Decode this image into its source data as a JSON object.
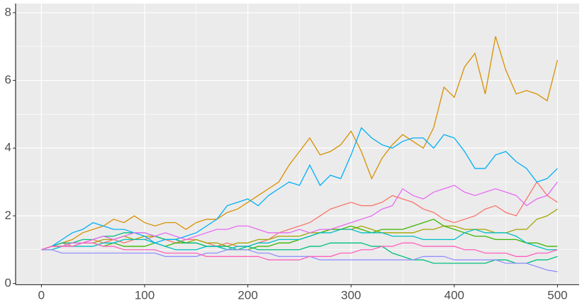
{
  "chart_data": {
    "type": "line",
    "x": [
      0,
      10,
      20,
      30,
      40,
      50,
      60,
      70,
      80,
      90,
      100,
      110,
      120,
      130,
      140,
      150,
      160,
      170,
      180,
      190,
      200,
      210,
      220,
      230,
      240,
      250,
      260,
      270,
      280,
      290,
      300,
      310,
      320,
      330,
      340,
      350,
      360,
      370,
      380,
      390,
      400,
      410,
      420,
      430,
      440,
      450,
      460,
      470,
      480,
      490,
      500
    ],
    "series": [
      {
        "color": "#F8766D",
        "values": [
          1.0,
          1.1,
          1.2,
          1.1,
          1.2,
          1.3,
          1.2,
          1.3,
          1.2,
          1.3,
          1.3,
          1.4,
          1.3,
          1.2,
          1.3,
          1.3,
          1.2,
          1.1,
          1.2,
          1.1,
          1.1,
          1.2,
          1.3,
          1.5,
          1.6,
          1.7,
          1.8,
          2.0,
          2.2,
          2.3,
          2.4,
          2.3,
          2.3,
          2.4,
          2.6,
          2.5,
          2.4,
          2.2,
          2.1,
          1.9,
          1.8,
          1.9,
          2.0,
          2.2,
          2.3,
          2.1,
          2.0,
          2.5,
          3.0,
          2.6,
          2.4
        ]
      },
      {
        "color": "#D89000",
        "values": [
          1.0,
          1.1,
          1.2,
          1.3,
          1.5,
          1.6,
          1.7,
          1.9,
          1.8,
          2.0,
          1.8,
          1.7,
          1.8,
          1.8,
          1.6,
          1.8,
          1.9,
          1.9,
          2.1,
          2.2,
          2.4,
          2.6,
          2.8,
          3.0,
          3.5,
          3.9,
          4.3,
          3.8,
          3.9,
          4.1,
          4.5,
          3.9,
          3.1,
          3.7,
          4.1,
          4.4,
          4.2,
          4.0,
          4.6,
          5.8,
          5.5,
          6.4,
          6.8,
          5.6,
          7.3,
          6.3,
          5.6,
          5.7,
          5.6,
          5.4,
          6.6
        ]
      },
      {
        "color": "#A3A500",
        "values": [
          1.0,
          1.1,
          1.1,
          1.2,
          1.2,
          1.2,
          1.3,
          1.3,
          1.4,
          1.3,
          1.4,
          1.4,
          1.3,
          1.3,
          1.2,
          1.3,
          1.2,
          1.2,
          1.1,
          1.2,
          1.2,
          1.3,
          1.3,
          1.4,
          1.4,
          1.4,
          1.5,
          1.5,
          1.6,
          1.6,
          1.6,
          1.7,
          1.6,
          1.5,
          1.5,
          1.5,
          1.5,
          1.6,
          1.6,
          1.7,
          1.7,
          1.6,
          1.6,
          1.6,
          1.5,
          1.5,
          1.6,
          1.6,
          1.9,
          2.0,
          2.2
        ]
      },
      {
        "color": "#39B600",
        "values": [
          1.0,
          1.1,
          1.1,
          1.2,
          1.2,
          1.2,
          1.1,
          1.2,
          1.1,
          1.1,
          1.1,
          1.2,
          1.1,
          1.2,
          1.2,
          1.2,
          1.1,
          1.1,
          1.0,
          1.0,
          1.0,
          1.1,
          1.1,
          1.2,
          1.2,
          1.3,
          1.4,
          1.5,
          1.6,
          1.6,
          1.7,
          1.6,
          1.5,
          1.6,
          1.6,
          1.6,
          1.7,
          1.8,
          1.9,
          1.7,
          1.6,
          1.5,
          1.4,
          1.4,
          1.3,
          1.3,
          1.3,
          1.2,
          1.2,
          1.1,
          1.1
        ]
      },
      {
        "color": "#00BF7D",
        "values": [
          1.0,
          1.1,
          1.2,
          1.2,
          1.3,
          1.3,
          1.4,
          1.4,
          1.5,
          1.5,
          1.5,
          1.4,
          1.3,
          1.3,
          1.2,
          1.2,
          1.1,
          1.1,
          1.1,
          1.0,
          1.1,
          1.0,
          1.0,
          1.0,
          1.0,
          1.0,
          1.1,
          1.1,
          1.2,
          1.2,
          1.2,
          1.2,
          1.1,
          1.1,
          0.9,
          0.8,
          0.7,
          0.7,
          0.6,
          0.6,
          0.6,
          0.6,
          0.6,
          0.6,
          0.7,
          0.7,
          0.6,
          0.6,
          0.7,
          0.7,
          0.8
        ]
      },
      {
        "color": "#00BFC4",
        "values": [
          1.0,
          1.0,
          1.1,
          1.1,
          1.1,
          1.1,
          1.2,
          1.2,
          1.3,
          1.3,
          1.3,
          1.2,
          1.1,
          1.0,
          1.0,
          1.0,
          1.1,
          1.1,
          1.0,
          1.1,
          1.1,
          1.2,
          1.2,
          1.3,
          1.3,
          1.3,
          1.4,
          1.5,
          1.5,
          1.6,
          1.6,
          1.5,
          1.5,
          1.5,
          1.4,
          1.4,
          1.4,
          1.3,
          1.3,
          1.3,
          1.3,
          1.5,
          1.6,
          1.5,
          1.5,
          1.5,
          1.4,
          1.2,
          1.1,
          1.0,
          1.0
        ]
      },
      {
        "color": "#00B0F6",
        "values": [
          1.0,
          1.1,
          1.3,
          1.5,
          1.6,
          1.8,
          1.7,
          1.6,
          1.6,
          1.5,
          1.4,
          1.2,
          1.3,
          1.3,
          1.4,
          1.5,
          1.7,
          1.9,
          2.3,
          2.4,
          2.5,
          2.3,
          2.6,
          2.8,
          3.0,
          2.9,
          3.5,
          2.9,
          3.2,
          3.1,
          3.8,
          4.6,
          4.3,
          4.1,
          4.0,
          4.2,
          4.3,
          4.3,
          4.0,
          4.4,
          4.3,
          3.9,
          3.4,
          3.4,
          3.8,
          3.9,
          3.6,
          3.4,
          3.0,
          3.1,
          3.4
        ]
      },
      {
        "color": "#9590FF",
        "values": [
          1.0,
          1.0,
          0.9,
          0.9,
          0.9,
          0.9,
          0.9,
          0.9,
          0.9,
          0.9,
          0.9,
          0.9,
          0.8,
          0.8,
          0.8,
          0.8,
          0.9,
          0.9,
          1.0,
          1.0,
          1.0,
          0.9,
          0.9,
          0.8,
          0.8,
          0.8,
          0.8,
          0.7,
          0.7,
          0.7,
          0.7,
          0.7,
          0.7,
          0.7,
          0.7,
          0.7,
          0.7,
          0.8,
          0.8,
          0.8,
          0.7,
          0.7,
          0.7,
          0.7,
          0.7,
          0.6,
          0.6,
          0.6,
          0.5,
          0.4,
          0.35
        ]
      },
      {
        "color": "#E76BF3",
        "values": [
          1.0,
          1.1,
          1.1,
          1.2,
          1.2,
          1.3,
          1.4,
          1.3,
          1.4,
          1.5,
          1.5,
          1.4,
          1.5,
          1.4,
          1.3,
          1.4,
          1.5,
          1.6,
          1.6,
          1.7,
          1.7,
          1.6,
          1.5,
          1.5,
          1.5,
          1.6,
          1.5,
          1.6,
          1.6,
          1.7,
          1.8,
          1.9,
          2.0,
          2.2,
          2.3,
          2.8,
          2.6,
          2.5,
          2.7,
          2.8,
          2.9,
          2.7,
          2.6,
          2.7,
          2.8,
          2.7,
          2.6,
          2.3,
          2.5,
          2.6,
          3.0
        ]
      },
      {
        "color": "#FF62BC",
        "values": [
          1.0,
          1.1,
          1.1,
          1.1,
          1.2,
          1.2,
          1.1,
          1.1,
          1.0,
          1.0,
          1.0,
          1.0,
          0.9,
          0.9,
          0.9,
          0.9,
          0.8,
          0.8,
          0.8,
          0.8,
          0.8,
          0.8,
          0.7,
          0.7,
          0.7,
          0.7,
          0.8,
          0.8,
          0.8,
          0.9,
          0.9,
          1.0,
          1.0,
          1.1,
          1.1,
          1.2,
          1.2,
          1.1,
          1.1,
          1.1,
          1.1,
          1.0,
          1.0,
          0.9,
          0.9,
          0.9,
          0.8,
          0.8,
          0.9,
          0.9,
          1.0
        ]
      }
    ],
    "xlim": [
      -25,
      521
    ],
    "ylim": [
      -0.03,
      8.27
    ],
    "xticks": [
      0,
      100,
      200,
      300,
      400,
      500
    ],
    "yticks": [
      0,
      2,
      4,
      6,
      8
    ],
    "xminor": [
      50,
      150,
      250,
      350,
      450
    ],
    "yminor": [
      1,
      3,
      5,
      7
    ],
    "grid": true
  }
}
